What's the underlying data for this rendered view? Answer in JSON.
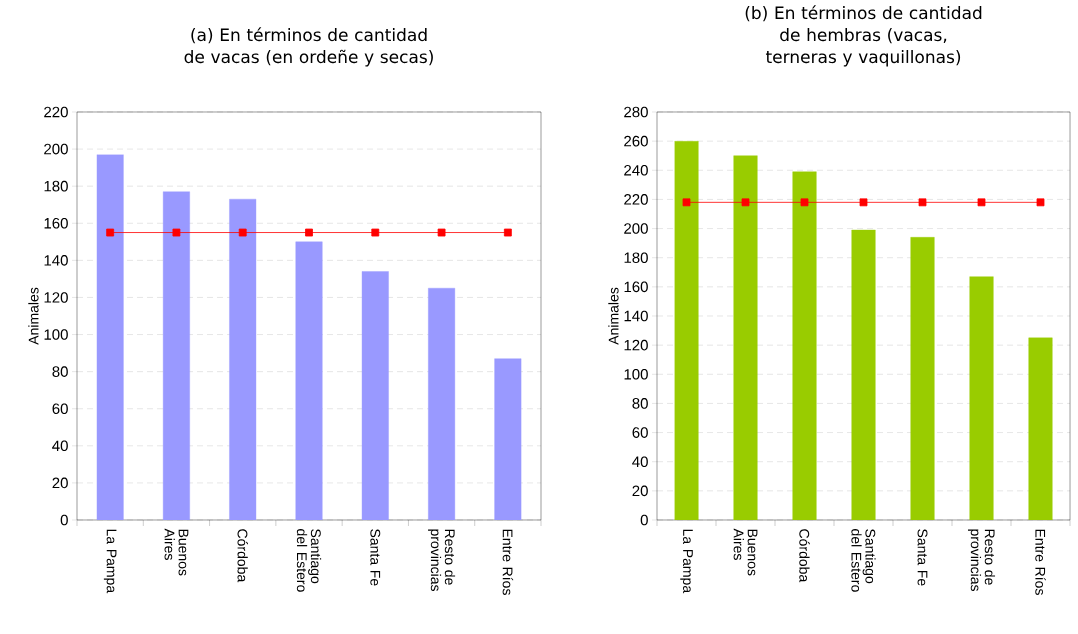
{
  "chart_data": [
    {
      "type": "bar",
      "title": "(a) En términos de cantidad de vacas (en ordeñe y secas)",
      "ylabel": "Animales",
      "categories": [
        "La Pampa",
        "Buenos Aires",
        "Córdoba",
        "Santiago del Estero",
        "Santa Fe",
        "Resto de provincias",
        "Entre Ríos"
      ],
      "series": [
        {
          "color": "#9999ff",
          "values": [
            197,
            177,
            173,
            150,
            134,
            125,
            87
          ]
        },
        {
          "type": "line",
          "color": "#ff0000",
          "marker": "square",
          "line_style": "solid",
          "values": [
            155,
            155,
            155,
            155,
            155,
            155,
            155
          ]
        }
      ],
      "ylim": [
        0,
        220
      ],
      "yticks": [
        0,
        20,
        40,
        60,
        80,
        100,
        120,
        140,
        160,
        180,
        200,
        220
      ],
      "grid": "y"
    },
    {
      "type": "bar",
      "title": "(b) En términos de cantidad de hembras (vacas, terneras y vaquillonas)",
      "ylabel": "Animales",
      "categories": [
        "La Pampa",
        "Buenos Aires",
        "Córdoba",
        "Santiago del Estero",
        "Santa Fe",
        "Resto de provincias",
        "Entre Ríos"
      ],
      "series": [
        {
          "color": "#99cc00",
          "values": [
            260,
            250,
            239,
            199,
            194,
            167,
            125
          ]
        },
        {
          "type": "line",
          "color": "#ff0000",
          "marker": "square",
          "line_style": "solid",
          "values": [
            218,
            218,
            218,
            218,
            218,
            218,
            218
          ]
        }
      ],
      "ylim": [
        0,
        280
      ],
      "yticks": [
        0,
        20,
        40,
        60,
        80,
        100,
        120,
        140,
        160,
        180,
        200,
        220,
        240,
        260,
        280
      ],
      "grid": "y"
    }
  ]
}
